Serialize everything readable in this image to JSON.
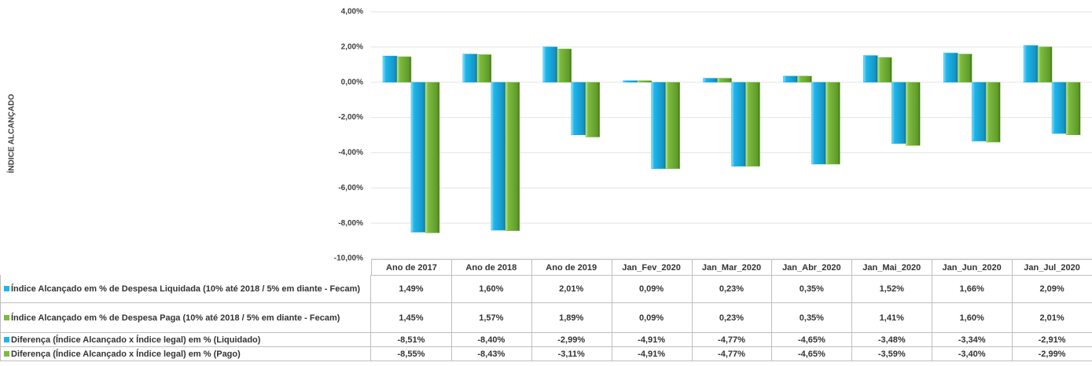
{
  "chart_data": {
    "type": "bar",
    "y_label": "ÍNDICE ALCANÇADO",
    "categories": [
      "Ano de 2017",
      "Ano de 2018",
      "Ano de 2019",
      "Jan_Fev_2020",
      "Jan_Mar_2020",
      "Jan_Abr_2020",
      "Jan_Mai_2020",
      "Jan_Jun_2020",
      "Jan_Jul_2020"
    ],
    "series": [
      {
        "name": "Índice Alcançado em % de Despesa Liquidada (10% até 2018 / 5% em diante - Fecam)",
        "color": "#1fb5ea",
        "values": [
          1.49,
          1.6,
          2.01,
          0.09,
          0.23,
          0.35,
          1.52,
          1.66,
          2.09
        ],
        "value_labels": [
          "1,49%",
          "1,60%",
          "2,01%",
          "0,09%",
          "0,23%",
          "0,35%",
          "1,52%",
          "1,66%",
          "2,09%"
        ]
      },
      {
        "name": "Índice Alcançado em % de Despesa Paga  (10% até 2018 / 5% em diante - Fecam)",
        "color": "#7dbb3f",
        "values": [
          1.45,
          1.57,
          1.89,
          0.09,
          0.23,
          0.35,
          1.41,
          1.6,
          2.01
        ],
        "value_labels": [
          "1,45%",
          "1,57%",
          "1,89%",
          "0,09%",
          "0,23%",
          "0,35%",
          "1,41%",
          "1,60%",
          "2,01%"
        ]
      },
      {
        "name": "Diferença (Índice Alcançado x Índice legal) em % (Liquidado)",
        "color": "#1fb5ea",
        "values": [
          -8.51,
          -8.4,
          -2.99,
          -4.91,
          -4.77,
          -4.65,
          -3.48,
          -3.34,
          -2.91
        ],
        "value_labels": [
          "-8,51%",
          "-8,40%",
          "-2,99%",
          "-4,91%",
          "-4,77%",
          "-4,65%",
          "-3,48%",
          "-3,34%",
          "-2,91%"
        ]
      },
      {
        "name": "Diferença (Índice Alcançado x Índice legal) em % (Pago)",
        "color": "#7dbb3f",
        "values": [
          -8.55,
          -8.43,
          -3.11,
          -4.91,
          -4.77,
          -4.65,
          -3.59,
          -3.4,
          -2.99
        ],
        "value_labels": [
          "-8,55%",
          "-8,43%",
          "-3,11%",
          "-4,91%",
          "-4,77%",
          "-4,65%",
          "-3,59%",
          "-3,40%",
          "-2,99%"
        ]
      }
    ],
    "ylim": [
      -10,
      4
    ],
    "yticks": [
      {
        "value": -10,
        "label": "-10,00%"
      },
      {
        "value": -8,
        "label": "-8,00%"
      },
      {
        "value": -6,
        "label": "-6,00%"
      },
      {
        "value": -4,
        "label": "-4,00%"
      },
      {
        "value": -2,
        "label": "-2,00%"
      },
      {
        "value": 0,
        "label": "0,00%"
      },
      {
        "value": 2,
        "label": "2,00%"
      },
      {
        "value": 4,
        "label": "4,00%"
      }
    ],
    "grid": true
  }
}
